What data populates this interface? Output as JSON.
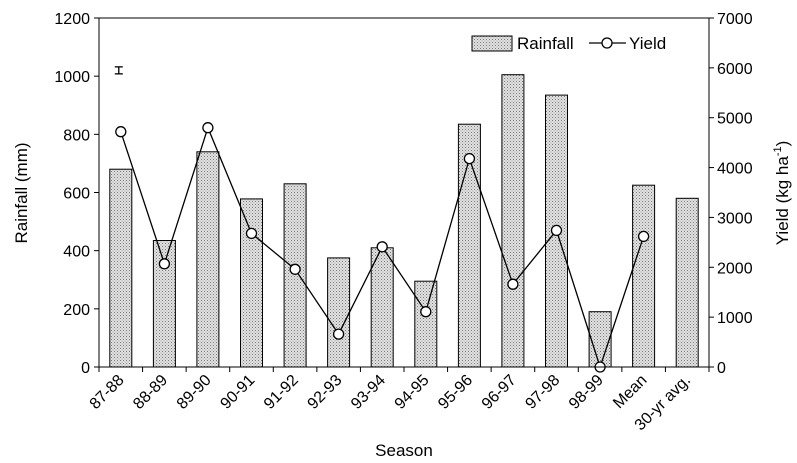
{
  "chart_data": {
    "type": "bar",
    "categories": [
      "87-88",
      "88-89",
      "89-90",
      "90-91",
      "91-92",
      "92-93",
      "93-94",
      "94-95",
      "95-96",
      "96-97",
      "97-98",
      "98-99",
      "Mean",
      "30-yr avg."
    ],
    "series": [
      {
        "name": "Rainfall",
        "type": "bar",
        "axis": "left",
        "values": [
          680,
          435,
          740,
          578,
          630,
          375,
          410,
          295,
          835,
          1005,
          935,
          190,
          625,
          580
        ]
      },
      {
        "name": "Yield",
        "type": "line",
        "axis": "right",
        "values": [
          4720,
          2070,
          4800,
          2680,
          1960,
          660,
          2410,
          1110,
          4180,
          1660,
          2740,
          0,
          2620,
          null
        ]
      }
    ],
    "error_bar": {
      "category": "87-88",
      "center": 1020,
      "half_width": 12
    },
    "xlabel": "Season",
    "ylabel_left": "Rainfall (mm)",
    "ylabel_right_main": "Yield (kg ha",
    "ylabel_right_sup": "-1",
    "ylabel_right_close": ")",
    "ylim_left": [
      0,
      1200
    ],
    "ylim_right": [
      0,
      7000
    ],
    "yticks_left": [
      "0",
      "200",
      "400",
      "600",
      "800",
      "1000",
      "1200"
    ],
    "yticks_right": [
      "0",
      "1000",
      "2000",
      "3000",
      "4000",
      "5000",
      "6000",
      "7000"
    ],
    "legend": {
      "position": "top-right",
      "rainfall_label": "Rainfall",
      "yield_label": "Yield"
    },
    "grid": false,
    "colors": {
      "bar_fill": "#d0d0d0",
      "bar_stroke": "#000000",
      "line": "#000000",
      "marker_fill": "#ffffff"
    }
  }
}
